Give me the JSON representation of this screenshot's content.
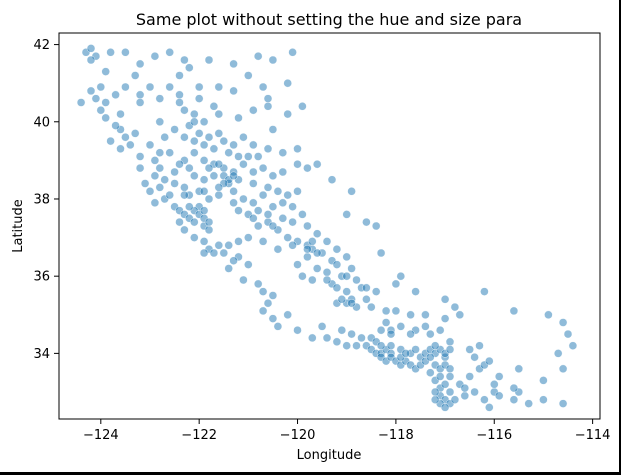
{
  "chart_data": {
    "type": "scatter",
    "title": "Same plot without setting the hue and size para",
    "xlabel": "Longitude",
    "ylabel": "Latitude",
    "xlim": [
      -124.85,
      -113.85
    ],
    "ylim": [
      32.3,
      42.3
    ],
    "xticks": [
      -124,
      -122,
      -120,
      -118,
      -116,
      -114
    ],
    "yticks": [
      34,
      36,
      38,
      40,
      42
    ],
    "xtick_labels": [
      "−124",
      "−122",
      "−120",
      "−118",
      "−116",
      "−114"
    ],
    "ytick_labels": [
      "34",
      "36",
      "38",
      "40",
      "42"
    ],
    "grid": false,
    "color": "#1f77b4",
    "points": [
      [
        -124.3,
        41.8
      ],
      [
        -124.2,
        41.9
      ],
      [
        -124.1,
        41.7
      ],
      [
        -124.2,
        41.6
      ],
      [
        -123.8,
        41.8
      ],
      [
        -123.5,
        41.8
      ],
      [
        -123.2,
        41.5
      ],
      [
        -122.9,
        41.7
      ],
      [
        -122.6,
        41.8
      ],
      [
        -122.3,
        41.6
      ],
      [
        -122.2,
        41.4
      ],
      [
        -121.8,
        41.6
      ],
      [
        -121.3,
        41.5
      ],
      [
        -120.8,
        41.7
      ],
      [
        -120.5,
        41.6
      ],
      [
        -120.1,
        41.8
      ],
      [
        -122.4,
        41.2
      ],
      [
        -122.6,
        40.9
      ],
      [
        -122.0,
        40.9
      ],
      [
        -121.6,
        40.9
      ],
      [
        -121.3,
        40.8
      ],
      [
        -120.7,
        40.9
      ],
      [
        -120.2,
        41.0
      ],
      [
        -124.2,
        40.8
      ],
      [
        -124.1,
        40.6
      ],
      [
        -124.0,
        40.9
      ],
      [
        -123.9,
        40.5
      ],
      [
        -124.4,
        40.5
      ],
      [
        -124.0,
        40.3
      ],
      [
        -123.6,
        40.2
      ],
      [
        -123.2,
        40.5
      ],
      [
        -122.8,
        40.6
      ],
      [
        -122.4,
        40.5
      ],
      [
        -122.3,
        40.3
      ],
      [
        -122.1,
        40.2
      ],
      [
        -121.9,
        40.0
      ],
      [
        -121.6,
        40.2
      ],
      [
        -121.2,
        40.1
      ],
      [
        -120.9,
        40.3
      ],
      [
        -120.6,
        40.4
      ],
      [
        -120.2,
        40.2
      ],
      [
        -122.2,
        39.9
      ],
      [
        -122.5,
        39.8
      ],
      [
        -122.0,
        39.7
      ],
      [
        -121.8,
        39.6
      ],
      [
        -121.6,
        39.7
      ],
      [
        -121.5,
        39.5
      ],
      [
        -121.3,
        39.4
      ],
      [
        -121.1,
        39.6
      ],
      [
        -120.9,
        39.4
      ],
      [
        -120.6,
        39.3
      ],
      [
        -120.3,
        39.2
      ],
      [
        -120.0,
        39.3
      ],
      [
        -123.6,
        39.8
      ],
      [
        -123.8,
        39.5
      ],
      [
        -123.6,
        39.3
      ],
      [
        -123.4,
        39.4
      ],
      [
        -123.2,
        39.1
      ],
      [
        -122.9,
        39.0
      ],
      [
        -122.6,
        39.2
      ],
      [
        -122.3,
        39.0
      ],
      [
        -122.1,
        39.2
      ],
      [
        -121.9,
        39.0
      ],
      [
        -121.7,
        38.9
      ],
      [
        -121.5,
        38.8
      ],
      [
        -121.3,
        38.7
      ],
      [
        -121.1,
        38.9
      ],
      [
        -120.9,
        38.7
      ],
      [
        -120.7,
        38.8
      ],
      [
        -120.5,
        38.6
      ],
      [
        -120.3,
        38.7
      ],
      [
        -120.0,
        38.9
      ],
      [
        -119.8,
        38.8
      ],
      [
        -122.9,
        38.6
      ],
      [
        -122.7,
        38.5
      ],
      [
        -122.5,
        38.4
      ],
      [
        -122.3,
        38.3
      ],
      [
        -122.2,
        38.1
      ],
      [
        -122.0,
        38.2
      ],
      [
        -121.8,
        38.0
      ],
      [
        -121.6,
        38.1
      ],
      [
        -121.4,
        38.4
      ],
      [
        -121.3,
        38.2
      ],
      [
        -121.1,
        38.0
      ],
      [
        -120.9,
        37.9
      ],
      [
        -120.7,
        38.1
      ],
      [
        -120.5,
        37.8
      ],
      [
        -120.3,
        37.9
      ],
      [
        -120.1,
        37.8
      ],
      [
        -119.9,
        37.6
      ],
      [
        -123.0,
        38.2
      ],
      [
        -122.9,
        37.9
      ],
      [
        -122.7,
        38.0
      ],
      [
        -122.5,
        37.8
      ],
      [
        -122.4,
        37.7
      ],
      [
        -122.3,
        37.6
      ],
      [
        -122.2,
        37.5
      ],
      [
        -122.1,
        37.4
      ],
      [
        -121.9,
        37.3
      ],
      [
        -121.8,
        37.2
      ],
      [
        -122.4,
        37.4
      ],
      [
        -122.3,
        37.2
      ],
      [
        -122.1,
        37.0
      ],
      [
        -121.9,
        36.9
      ],
      [
        -121.8,
        36.7
      ],
      [
        -121.7,
        36.6
      ],
      [
        -121.9,
        36.6
      ],
      [
        -121.6,
        36.8
      ],
      [
        -121.4,
        36.8
      ],
      [
        -121.2,
        36.5
      ],
      [
        -121.0,
        36.3
      ],
      [
        -121.4,
        36.2
      ],
      [
        -121.0,
        37.0
      ],
      [
        -120.8,
        37.3
      ],
      [
        -120.6,
        37.4
      ],
      [
        -120.4,
        37.2
      ],
      [
        -120.2,
        37.0
      ],
      [
        -120.0,
        36.9
      ],
      [
        -119.8,
        36.8
      ],
      [
        -119.7,
        36.7
      ],
      [
        -119.5,
        36.6
      ],
      [
        -119.8,
        36.5
      ],
      [
        -119.3,
        36.4
      ],
      [
        -119.2,
        36.3
      ],
      [
        -119.6,
        36.2
      ],
      [
        -119.4,
        36.1
      ],
      [
        -119.1,
        36.0
      ],
      [
        -119.3,
        35.8
      ],
      [
        -119.0,
        35.6
      ],
      [
        -118.9,
        35.4
      ],
      [
        -119.2,
        35.3
      ],
      [
        -118.8,
        35.2
      ],
      [
        -118.6,
        35.4
      ],
      [
        -118.4,
        35.6
      ],
      [
        -120.7,
        35.6
      ],
      [
        -120.6,
        35.3
      ],
      [
        -120.7,
        35.1
      ],
      [
        -120.5,
        34.9
      ],
      [
        -120.4,
        34.7
      ],
      [
        -120.0,
        34.6
      ],
      [
        -119.7,
        34.4
      ],
      [
        -119.4,
        34.4
      ],
      [
        -119.2,
        34.3
      ],
      [
        -119.0,
        34.2
      ],
      [
        -118.8,
        34.2
      ],
      [
        -118.6,
        34.2
      ],
      [
        -118.5,
        34.1
      ],
      [
        -118.4,
        34.0
      ],
      [
        -118.3,
        34.0
      ],
      [
        -118.2,
        34.1
      ],
      [
        -118.1,
        34.0
      ],
      [
        -118.3,
        33.9
      ],
      [
        -118.2,
        33.8
      ],
      [
        -118.1,
        33.9
      ],
      [
        -118.0,
        33.8
      ],
      [
        -117.9,
        33.7
      ],
      [
        -117.8,
        33.8
      ],
      [
        -117.9,
        33.9
      ],
      [
        -117.7,
        34.0
      ],
      [
        -117.6,
        34.1
      ],
      [
        -117.5,
        33.9
      ],
      [
        -117.4,
        34.0
      ],
      [
        -117.3,
        34.1
      ],
      [
        -117.2,
        34.0
      ],
      [
        -117.1,
        34.1
      ],
      [
        -117.0,
        33.9
      ],
      [
        -117.2,
        33.7
      ],
      [
        -117.1,
        33.6
      ],
      [
        -117.3,
        33.5
      ],
      [
        -117.2,
        33.3
      ],
      [
        -117.1,
        33.1
      ],
      [
        -117.1,
        32.9
      ],
      [
        -117.0,
        32.8
      ],
      [
        -117.1,
        32.7
      ],
      [
        -117.2,
        32.8
      ],
      [
        -116.9,
        32.7
      ],
      [
        -116.9,
        33.0
      ],
      [
        -116.7,
        33.2
      ],
      [
        -116.5,
        33.4
      ],
      [
        -116.3,
        33.6
      ],
      [
        -116.2,
        33.7
      ],
      [
        -116.4,
        33.9
      ],
      [
        -116.5,
        34.1
      ],
      [
        -116.9,
        34.3
      ],
      [
        -117.3,
        34.5
      ],
      [
        -117.6,
        34.6
      ],
      [
        -117.9,
        34.7
      ],
      [
        -118.1,
        34.6
      ],
      [
        -118.2,
        34.8
      ],
      [
        -117.0,
        34.9
      ],
      [
        -116.8,
        35.2
      ],
      [
        -117.6,
        35.6
      ],
      [
        -118.0,
        35.8
      ],
      [
        -116.2,
        35.6
      ],
      [
        -115.6,
        35.1
      ],
      [
        -115.5,
        33.6
      ],
      [
        -115.5,
        33.0
      ],
      [
        -115.6,
        32.8
      ],
      [
        -115.3,
        32.7
      ],
      [
        -115.0,
        32.8
      ],
      [
        -114.6,
        32.7
      ],
      [
        -114.6,
        34.8
      ],
      [
        -114.5,
        34.5
      ],
      [
        -114.4,
        34.2
      ],
      [
        -114.7,
        34.0
      ],
      [
        -114.6,
        33.6
      ],
      [
        -115.0,
        33.3
      ],
      [
        -114.9,
        35.0
      ],
      [
        -116.1,
        32.6
      ],
      [
        -116.0,
        33.0
      ],
      [
        -119.0,
        37.6
      ],
      [
        -118.6,
        37.4
      ],
      [
        -118.4,
        37.3
      ],
      [
        -118.3,
        36.6
      ],
      [
        -117.9,
        36.0
      ],
      [
        -118.9,
        38.2
      ],
      [
        -119.3,
        38.5
      ],
      [
        -119.6,
        38.9
      ],
      [
        -120.5,
        39.8
      ],
      [
        -120.6,
        40.6
      ],
      [
        -119.9,
        40.4
      ],
      [
        -121.0,
        41.2
      ],
      [
        -123.3,
        41.2
      ],
      [
        -123.5,
        40.9
      ],
      [
        -123.9,
        41.3
      ],
      [
        -122.8,
        40.0
      ],
      [
        -122.7,
        39.6
      ],
      [
        -121.2,
        38.5
      ],
      [
        -121.5,
        38.6
      ],
      [
        -121.4,
        38.5
      ],
      [
        -121.3,
        38.6
      ],
      [
        -121.5,
        38.4
      ],
      [
        -122.0,
        37.8
      ],
      [
        -122.1,
        37.7
      ],
      [
        -122.2,
        37.8
      ],
      [
        -122.0,
        37.6
      ],
      [
        -121.9,
        37.5
      ],
      [
        -121.8,
        37.4
      ],
      [
        -121.9,
        37.7
      ],
      [
        -121.3,
        37.9
      ],
      [
        -121.2,
        37.7
      ],
      [
        -121.0,
        37.6
      ],
      [
        -120.9,
        37.5
      ],
      [
        -120.5,
        37.3
      ],
      [
        -120.1,
        36.8
      ],
      [
        -119.7,
        36.9
      ],
      [
        -119.8,
        36.7
      ],
      [
        -119.6,
        36.6
      ],
      [
        -119.0,
        35.3
      ],
      [
        -119.1,
        35.4
      ],
      [
        -118.9,
        35.3
      ],
      [
        -118.5,
        34.4
      ],
      [
        -118.4,
        34.3
      ],
      [
        -118.3,
        34.2
      ],
      [
        -118.1,
        34.2
      ],
      [
        -117.9,
        34.1
      ],
      [
        -117.8,
        34.0
      ],
      [
        -117.7,
        33.7
      ],
      [
        -117.6,
        33.6
      ],
      [
        -117.5,
        33.7
      ],
      [
        -117.4,
        33.8
      ],
      [
        -117.3,
        33.9
      ],
      [
        -117.2,
        34.2
      ],
      [
        -117.0,
        34.0
      ],
      [
        -116.9,
        34.1
      ],
      [
        -117.0,
        33.7
      ],
      [
        -116.9,
        33.6
      ],
      [
        -117.2,
        33.0
      ],
      [
        -117.0,
        32.6
      ],
      [
        -116.8,
        32.8
      ],
      [
        -116.6,
        32.9
      ],
      [
        -116.9,
        33.4
      ],
      [
        -117.0,
        33.2
      ],
      [
        -117.1,
        33.4
      ],
      [
        -116.6,
        33.1
      ],
      [
        -116.4,
        33.0
      ],
      [
        -116.2,
        32.8
      ],
      [
        -115.9,
        32.9
      ],
      [
        -115.6,
        33.1
      ],
      [
        -115.9,
        33.4
      ],
      [
        -116.0,
        33.2
      ],
      [
        -116.1,
        33.8
      ],
      [
        -116.3,
        34.2
      ],
      [
        -117.1,
        34.6
      ],
      [
        -117.4,
        34.7
      ],
      [
        -117.7,
        34.5
      ],
      [
        -118.1,
        34.5
      ],
      [
        -118.3,
        34.6
      ],
      [
        -118.7,
        34.4
      ],
      [
        -118.9,
        34.5
      ],
      [
        -119.1,
        34.6
      ],
      [
        -119.5,
        34.7
      ],
      [
        -120.2,
        35.0
      ],
      [
        -120.5,
        35.5
      ],
      [
        -120.8,
        35.8
      ],
      [
        -121.1,
        35.9
      ],
      [
        -121.3,
        36.4
      ],
      [
        -121.5,
        36.6
      ],
      [
        -121.2,
        36.9
      ],
      [
        -120.7,
        36.9
      ],
      [
        -120.4,
        36.7
      ],
      [
        -120.0,
        36.3
      ],
      [
        -119.9,
        36.0
      ],
      [
        -119.7,
        35.9
      ],
      [
        -119.4,
        35.9
      ],
      [
        -119.2,
        35.7
      ],
      [
        -118.7,
        35.7
      ],
      [
        -118.5,
        35.2
      ],
      [
        -118.2,
        35.1
      ],
      [
        -118.0,
        35.1
      ],
      [
        -117.7,
        35.0
      ],
      [
        -117.4,
        35.0
      ],
      [
        -117.0,
        35.4
      ],
      [
        -116.7,
        35.0
      ],
      [
        -123.1,
        38.4
      ],
      [
        -123.2,
        38.8
      ],
      [
        -122.8,
        38.8
      ],
      [
        -122.5,
        38.7
      ],
      [
        -122.1,
        38.6
      ],
      [
        -121.9,
        38.5
      ],
      [
        -121.7,
        38.6
      ],
      [
        -121.6,
        38.3
      ],
      [
        -121.9,
        38.2
      ],
      [
        -122.3,
        38.1
      ],
      [
        -122.6,
        38.1
      ],
      [
        -122.8,
        38.3
      ],
      [
        -121.7,
        39.3
      ],
      [
        -121.4,
        39.2
      ],
      [
        -121.2,
        39.1
      ],
      [
        -121.0,
        39.1
      ],
      [
        -120.8,
        39.1
      ],
      [
        -121.9,
        39.4
      ],
      [
        -122.1,
        39.5
      ],
      [
        -122.3,
        39.6
      ],
      [
        -122.1,
        40.0
      ],
      [
        -121.7,
        40.4
      ],
      [
        -122.0,
        40.6
      ],
      [
        -122.4,
        40.7
      ],
      [
        -123.0,
        40.9
      ],
      [
        -123.2,
        40.7
      ],
      [
        -123.7,
        40.7
      ],
      [
        -123.9,
        40.1
      ],
      [
        -123.7,
        39.9
      ],
      [
        -123.5,
        39.6
      ],
      [
        -123.3,
        39.7
      ],
      [
        -123.0,
        39.4
      ],
      [
        -122.8,
        39.2
      ],
      [
        -122.4,
        38.9
      ],
      [
        -122.2,
        38.8
      ],
      [
        -121.8,
        38.8
      ],
      [
        -121.6,
        38.9
      ],
      [
        -120.9,
        38.4
      ],
      [
        -120.6,
        38.3
      ],
      [
        -120.4,
        38.2
      ],
      [
        -120.2,
        38.1
      ],
      [
        -120.0,
        38.2
      ],
      [
        -120.8,
        37.7
      ],
      [
        -120.6,
        37.6
      ],
      [
        -120.3,
        37.5
      ],
      [
        -120.1,
        37.4
      ],
      [
        -119.8,
        37.3
      ],
      [
        -119.6,
        37.1
      ],
      [
        -119.4,
        36.9
      ],
      [
        -119.2,
        36.7
      ],
      [
        -119.0,
        36.5
      ],
      [
        -118.9,
        36.2
      ],
      [
        -119.0,
        36.0
      ],
      [
        -118.8,
        35.9
      ],
      [
        -118.6,
        35.7
      ]
    ]
  }
}
